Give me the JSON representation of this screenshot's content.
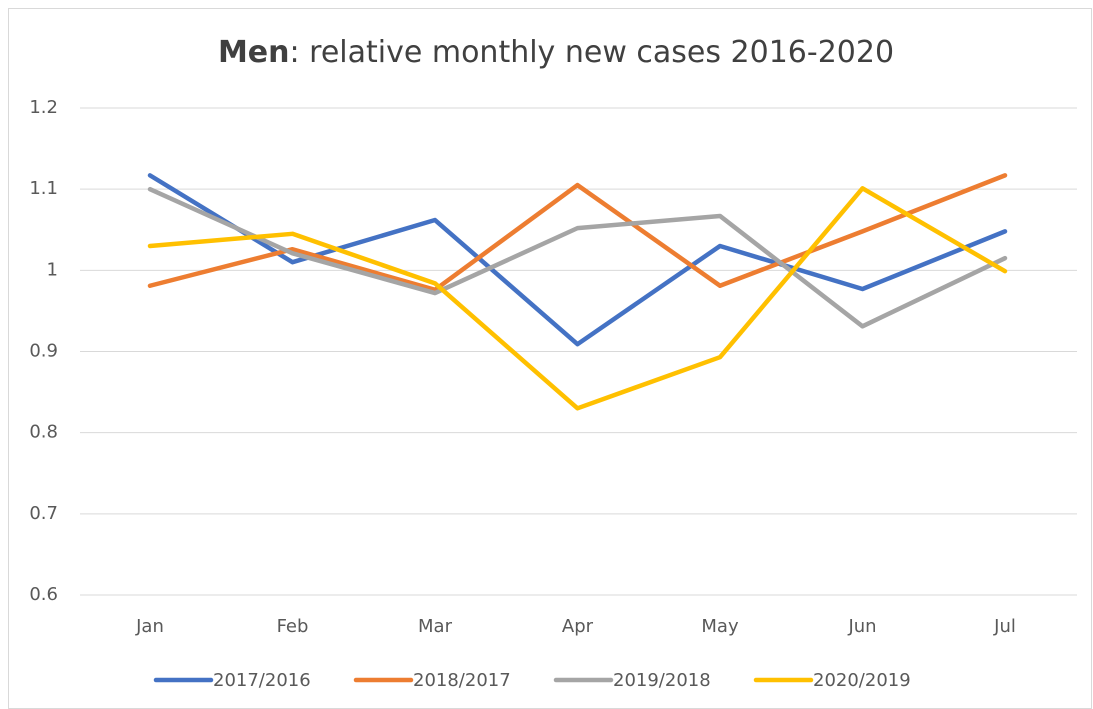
{
  "chart_data": {
    "type": "line",
    "title_parts": [
      "Men",
      ": relative monthly new cases 2016-2020"
    ],
    "categories": [
      "Jan",
      "Feb",
      "Mar",
      "Apr",
      "May",
      "Jun",
      "Jul"
    ],
    "series": [
      {
        "name": "2017/2016",
        "color": "#4472c4",
        "values": [
          1.117,
          1.01,
          1.062,
          0.909,
          1.03,
          0.977,
          1.048
        ]
      },
      {
        "name": "2018/2017",
        "color": "#ed7d31",
        "values": [
          0.981,
          1.026,
          0.976,
          1.105,
          0.981,
          1.048,
          1.117
        ]
      },
      {
        "name": "2019/2018",
        "color": "#a5a5a5",
        "values": [
          1.1,
          1.021,
          0.972,
          1.052,
          1.067,
          0.931,
          1.015
        ]
      },
      {
        "name": "2020/2019",
        "color": "#ffc000",
        "values": [
          1.03,
          1.045,
          0.984,
          0.83,
          0.893,
          1.101,
          0.999
        ]
      }
    ],
    "ylim": [
      0.6,
      1.2
    ],
    "yticks": [
      0.6,
      0.7,
      0.8,
      0.9,
      1,
      1.1,
      1.2
    ],
    "grid": true,
    "legend": "bottom"
  }
}
